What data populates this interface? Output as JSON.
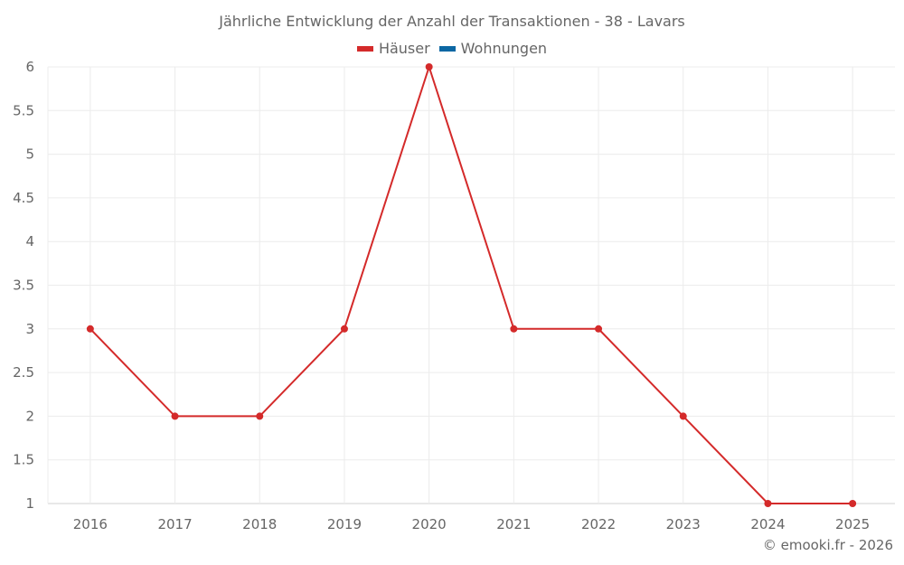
{
  "chart_data": {
    "type": "line",
    "title": "Jährliche Entwicklung der Anzahl der Transaktionen - 38 - Lavars",
    "xlabel": "",
    "ylabel": "",
    "categories": [
      "2016",
      "2017",
      "2018",
      "2019",
      "2020",
      "2021",
      "2022",
      "2023",
      "2024",
      "2025"
    ],
    "series": [
      {
        "name": "Häuser",
        "color": "#d42a2a",
        "values": [
          3,
          2,
          2,
          3,
          6,
          3,
          3,
          2,
          1,
          1
        ]
      },
      {
        "name": "Wohnungen",
        "color": "#0c67a3",
        "values": []
      }
    ],
    "ylim": [
      1,
      6
    ],
    "yticks": [
      "1",
      "1.5",
      "2",
      "2.5",
      "3",
      "3.5",
      "4",
      "4.5",
      "5",
      "5.5",
      "6"
    ],
    "grid": true,
    "legend_position": "top"
  },
  "title": "Jährliche Entwicklung der Anzahl der Transaktionen - 38 - Lavars",
  "legend": [
    {
      "label": "Häuser",
      "color": "#d42a2a"
    },
    {
      "label": "Wohnungen",
      "color": "#0c67a3"
    }
  ],
  "footer": "© emooki.fr - 2026"
}
